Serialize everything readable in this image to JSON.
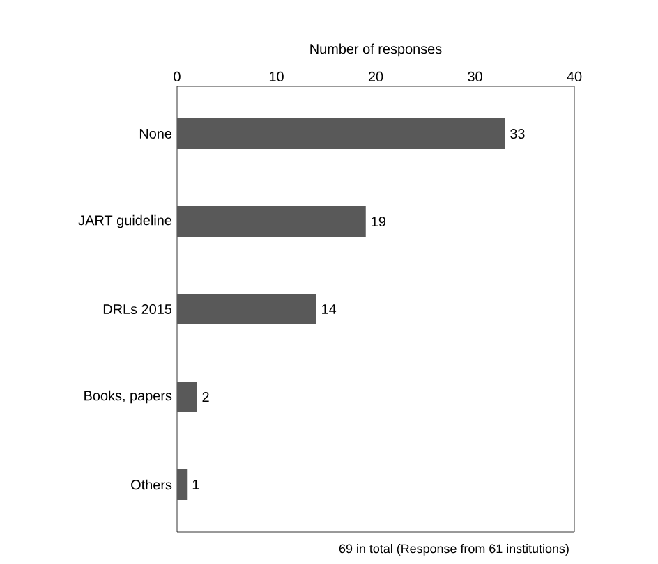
{
  "chart_data": {
    "type": "bar",
    "orientation": "horizontal",
    "xlabel": "Number of responses",
    "categories": [
      "None",
      "JART guideline",
      "DRLs 2015",
      "Books, papers",
      "Others"
    ],
    "values": [
      33,
      19,
      14,
      2,
      1
    ],
    "color": "#595959",
    "xlim": [
      0,
      40
    ],
    "xticks": [
      0,
      10,
      20,
      30,
      40
    ],
    "grid": false,
    "data_labels": true,
    "annotations": [
      "69 in total (Response from 61 institutions)"
    ]
  }
}
